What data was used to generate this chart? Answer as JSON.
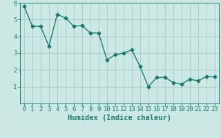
{
  "x": [
    0,
    1,
    2,
    3,
    4,
    5,
    6,
    7,
    8,
    9,
    10,
    11,
    12,
    13,
    14,
    15,
    16,
    17,
    18,
    19,
    20,
    21,
    22,
    23
  ],
  "y": [
    5.8,
    4.6,
    4.6,
    3.4,
    5.3,
    5.1,
    4.6,
    4.65,
    4.2,
    4.2,
    2.6,
    2.9,
    3.0,
    3.2,
    2.2,
    1.0,
    1.55,
    1.55,
    1.25,
    1.15,
    1.45,
    1.35,
    1.6,
    1.6
  ],
  "line_color": "#1a7a6e",
  "marker": "D",
  "marker_size": 2.5,
  "bg_color": "#cce8e4",
  "grid_color": "#aacfca",
  "xlabel": "Humidex (Indice chaleur)",
  "ylim": [
    0,
    6
  ],
  "xlim": [
    -0.5,
    23.5
  ],
  "yticks": [
    1,
    2,
    3,
    4,
    5,
    6
  ],
  "xticks": [
    0,
    1,
    2,
    3,
    4,
    5,
    6,
    7,
    8,
    9,
    10,
    11,
    12,
    13,
    14,
    15,
    16,
    17,
    18,
    19,
    20,
    21,
    22,
    23
  ],
  "tick_label_fontsize": 6.5,
  "xlabel_fontsize": 7.5,
  "label_color": "#1a7a6e"
}
